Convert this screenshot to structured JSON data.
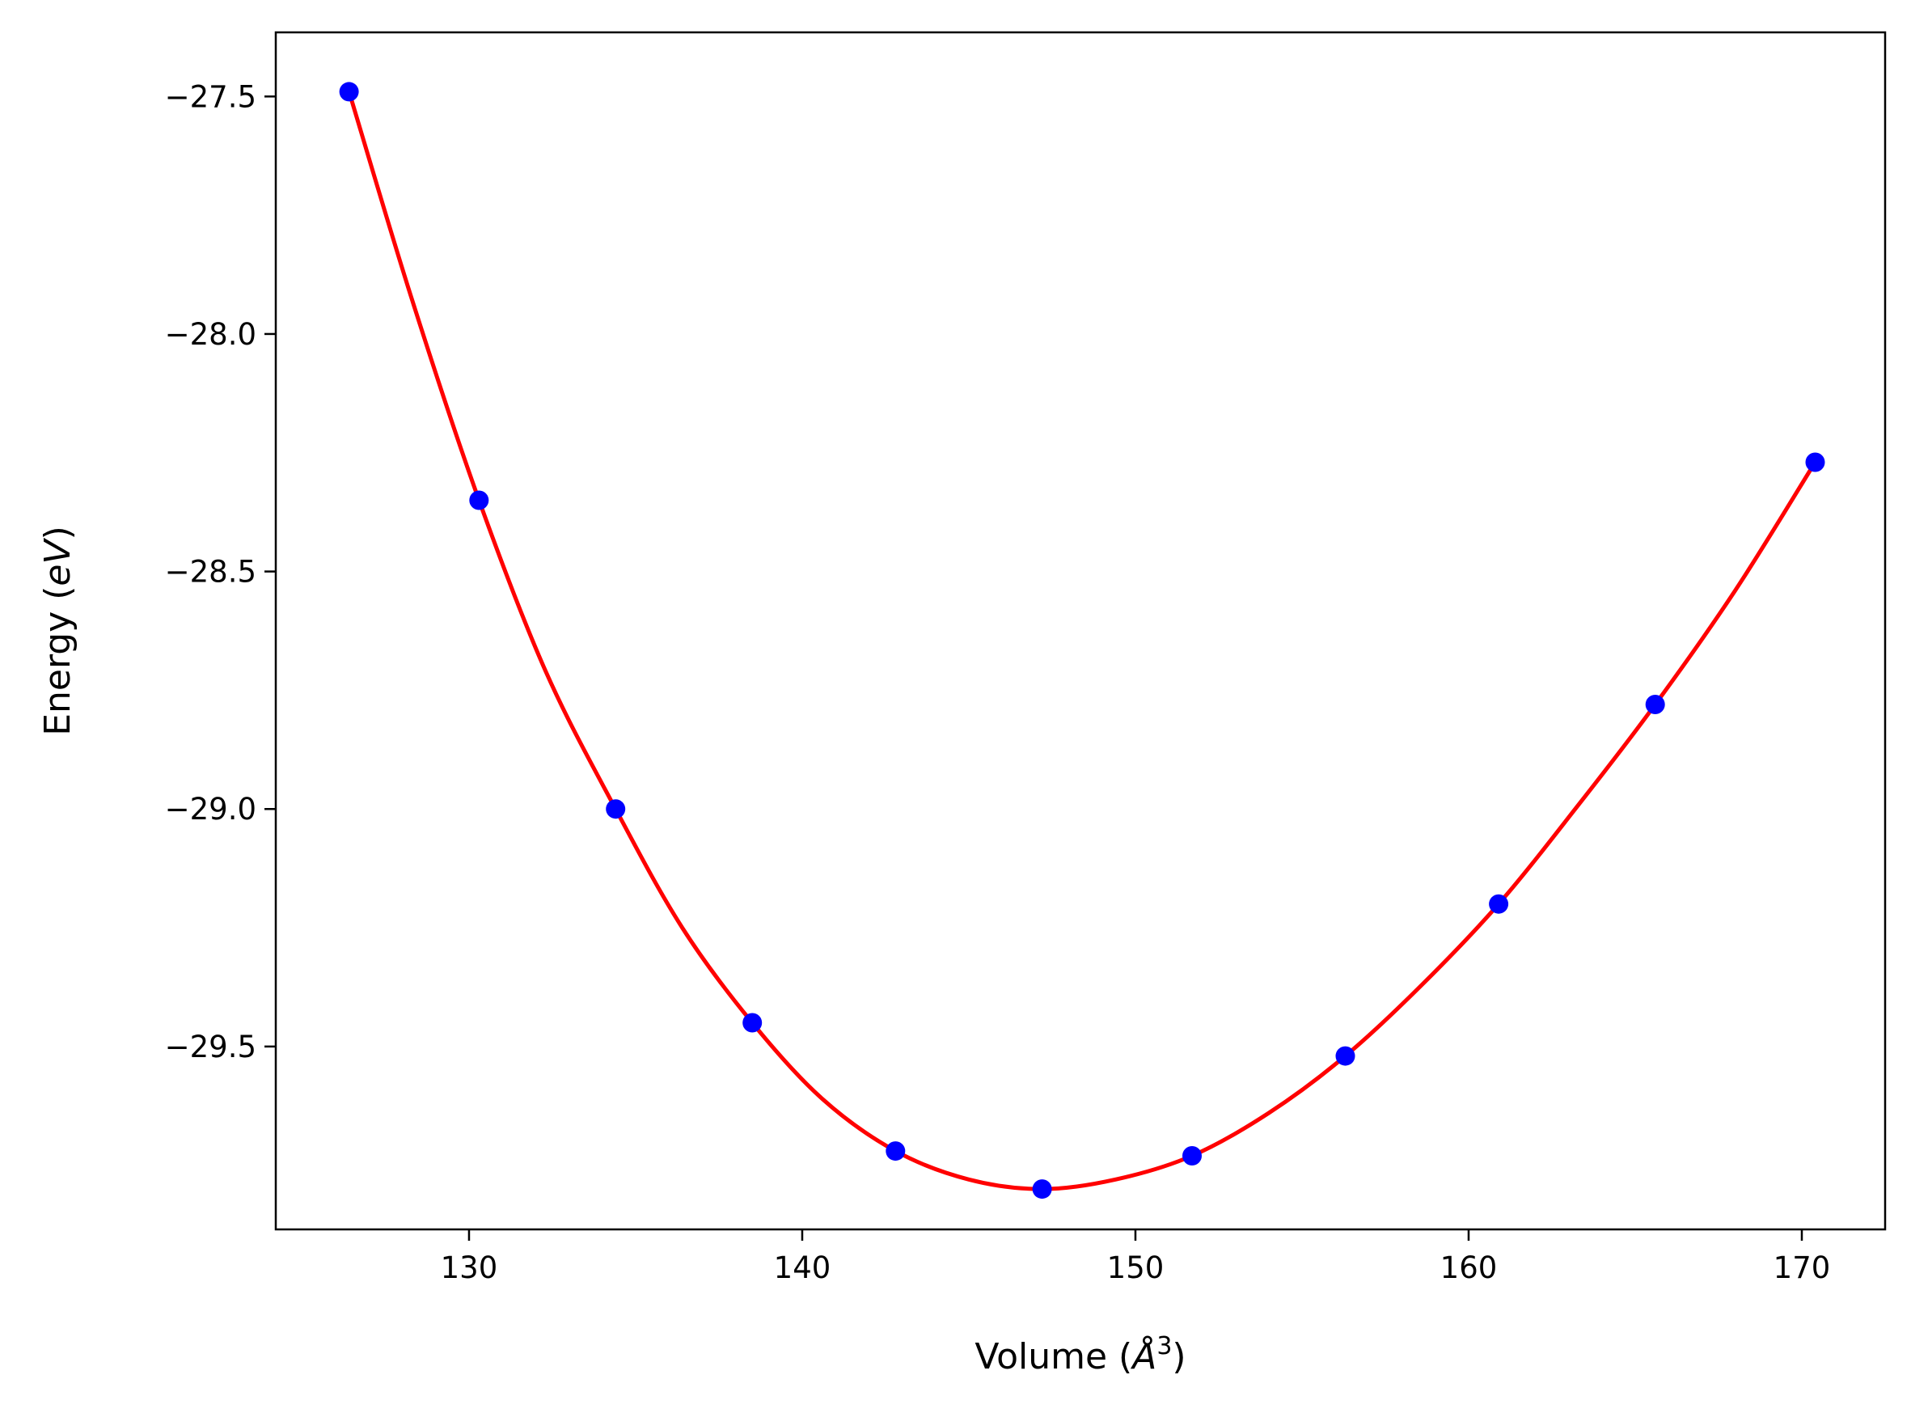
{
  "chart_data": {
    "type": "scatter",
    "xlabel": {
      "prefix": "Volume (",
      "symbol": "Å",
      "power": "3",
      "suffix": ")"
    },
    "ylabel": {
      "prefix": "Energy (",
      "symbol": "eV",
      "suffix": ")"
    },
    "xlim": [
      124.2,
      172.5
    ],
    "ylim": [
      -29.885,
      -27.365
    ],
    "xticks": [
      130,
      140,
      150,
      160,
      170
    ],
    "xtick_labels": [
      "130",
      "140",
      "150",
      "160",
      "170"
    ],
    "yticks": [
      -27.5,
      -28.0,
      -28.5,
      -29.0,
      -29.5
    ],
    "ytick_labels": [
      "−27.5",
      "−28.0",
      "−28.5",
      "−29.0",
      "−29.5"
    ],
    "grid": false,
    "series": [
      {
        "kind": "points",
        "color": "#0000ff",
        "x": [
          126.4,
          130.3,
          134.4,
          138.5,
          142.8,
          147.2,
          151.7,
          156.3,
          160.9,
          165.6,
          170.4
        ],
        "y": [
          -27.49,
          -28.35,
          -29.0,
          -29.45,
          -29.72,
          -29.8,
          -29.73,
          -29.52,
          -29.2,
          -28.78,
          -28.27
        ]
      },
      {
        "kind": "fit-curve",
        "color": "#ff0000",
        "x": [
          126.4,
          128.3,
          130.3,
          132.3,
          134.4,
          136.4,
          138.5,
          140.6,
          142.8,
          145.0,
          147.2,
          149.4,
          151.7,
          154.0,
          156.3,
          158.6,
          160.9,
          163.2,
          165.6,
          168.0,
          170.4
        ],
        "y": [
          -27.49,
          -27.93,
          -28.35,
          -28.71,
          -29.0,
          -29.25,
          -29.45,
          -29.61,
          -29.72,
          -29.78,
          -29.8,
          -29.78,
          -29.73,
          -29.64,
          -29.52,
          -29.37,
          -29.2,
          -29.0,
          -28.78,
          -28.54,
          -28.27
        ]
      }
    ]
  }
}
